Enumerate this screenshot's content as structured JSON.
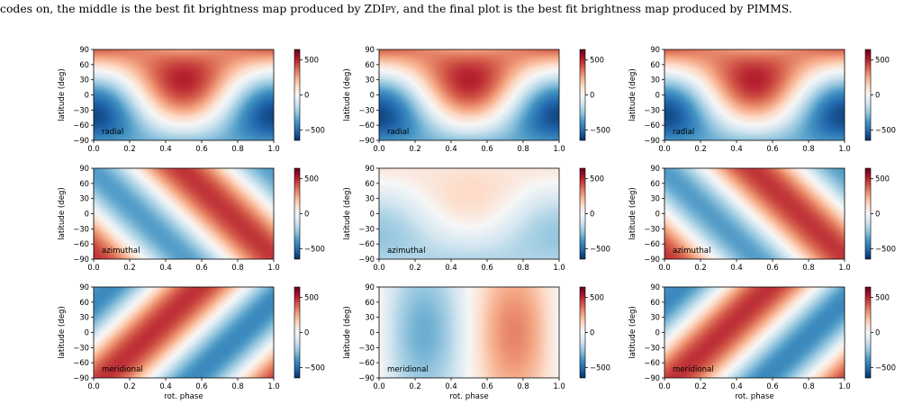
{
  "caption": {
    "part1": "codes on, the middle is the best fit brightness map produced by ZDI",
    "part2": "py",
    "part3": ", and the final plot is the best fit brightness map produced by PIMMS."
  },
  "chart_data": {
    "type": "heatmap",
    "colormap": "RdBu_r",
    "colorbar_range": [
      -650,
      650
    ],
    "colorbar_ticks": [
      "500",
      "0",
      "−500"
    ],
    "colorbar_tick_values": [
      500,
      0,
      -500
    ],
    "x_ticks": [
      "0.0",
      "0.2",
      "0.4",
      "0.6",
      "0.8",
      "1.0"
    ],
    "y_ticks": [
      "90",
      "60",
      "30",
      "0",
      "−30",
      "−60",
      "−90"
    ],
    "xlim": [
      0,
      1
    ],
    "ylim": [
      -90,
      90
    ],
    "ylabel": "latitude (deg)",
    "xlabel": "rot. phase",
    "component_labels": [
      "radial",
      "azimuthal",
      "meridional"
    ],
    "panels": [
      {
        "component": "radial",
        "column": 1,
        "amplitude": 650
      },
      {
        "component": "radial",
        "column": 2,
        "amplitude": 650
      },
      {
        "component": "radial",
        "column": 3,
        "amplitude": 650
      },
      {
        "component": "azimuthal",
        "column": 1,
        "amplitude": 520
      },
      {
        "component": "azimuthal",
        "column": 2,
        "amplitude": 300
      },
      {
        "component": "azimuthal",
        "column": 3,
        "amplitude": 520
      },
      {
        "component": "meridional",
        "column": 1,
        "amplitude": 560
      },
      {
        "component": "meridional",
        "column": 2,
        "amplitude": 380
      },
      {
        "component": "meridional",
        "column": 3,
        "amplitude": 560
      }
    ]
  }
}
